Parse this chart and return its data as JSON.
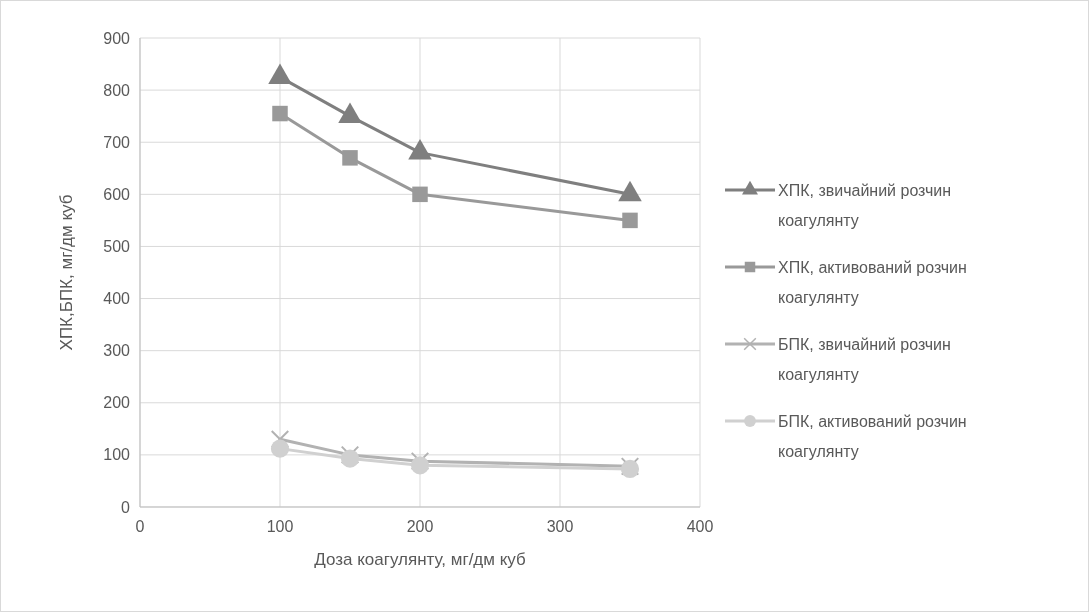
{
  "chart_data": {
    "type": "line",
    "xlabel": "Доза коагулянту, мг/дм куб",
    "ylabel": "ХПК,БПК, мг/дм куб",
    "xlim": [
      0,
      400
    ],
    "xticks": [
      0,
      100,
      200,
      300,
      400
    ],
    "ylim": [
      0,
      900
    ],
    "yticks": [
      0,
      100,
      200,
      300,
      400,
      500,
      600,
      700,
      800,
      900
    ],
    "grid": true,
    "legend": "right",
    "x": [
      100,
      150,
      200,
      350
    ],
    "series": [
      {
        "name": "ХПК, звичайний розчин коагулянту",
        "color": "#7f7f7f",
        "marker": "triangle",
        "values": [
          825,
          750,
          680,
          600
        ]
      },
      {
        "name": "ХПК, активований розчин коагулянту",
        "color": "#999999",
        "marker": "square",
        "values": [
          755,
          670,
          600,
          550
        ]
      },
      {
        "name": "БПК, звичайний розчин коагулянту",
        "color": "#b2b2b2",
        "marker": "cross",
        "values": [
          130,
          100,
          88,
          78
        ]
      },
      {
        "name": "БПК, активований розчин коагулянту",
        "color": "#d0d0d0",
        "marker": "circle",
        "values": [
          112,
          93,
          80,
          73
        ]
      }
    ]
  }
}
